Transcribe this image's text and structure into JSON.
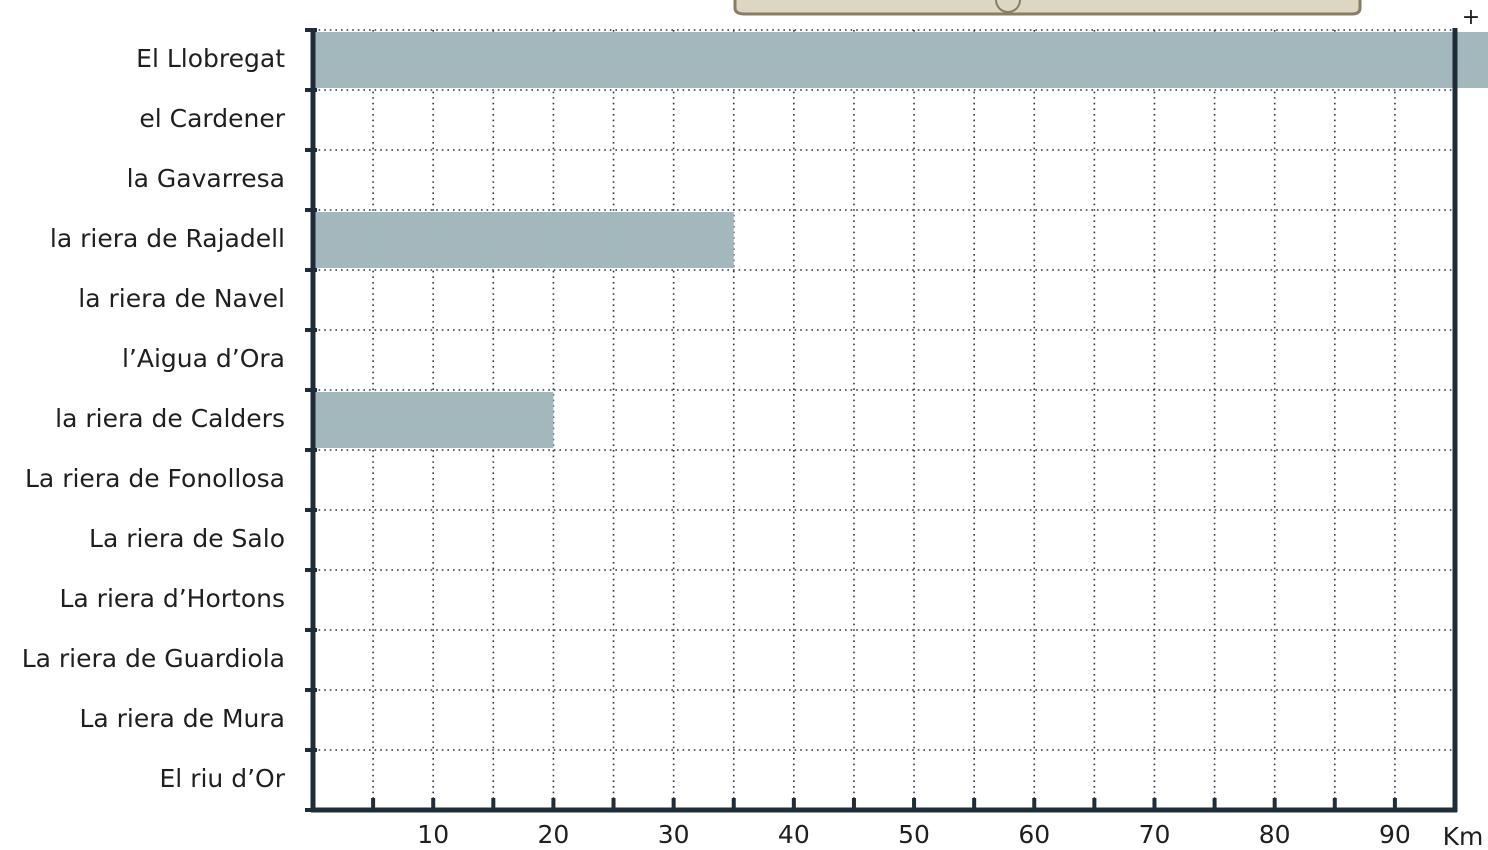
{
  "zoom_button": "+",
  "chart_data": {
    "type": "bar",
    "orientation": "horizontal",
    "categories": [
      "El Llobregat",
      "el Cardener",
      "la Gavarresa",
      "la riera de Rajadell",
      "la riera de Navel",
      "l’Aigua d’Ora",
      "la riera de Calders",
      "La riera de Fonollosa",
      "La riera de Salo",
      "La riera d’Hortons",
      "La riera de Guardiola",
      "La riera de Mura",
      "El riu d’Or"
    ],
    "values": [
      98,
      null,
      null,
      35,
      null,
      null,
      20,
      null,
      null,
      null,
      null,
      null,
      null
    ],
    "color": "#a3b8bd",
    "xlim": [
      0,
      95
    ],
    "xticks": [
      10,
      20,
      30,
      40,
      50,
      60,
      70,
      80,
      90
    ],
    "x_minor_ticks": [
      5,
      15,
      25,
      35,
      45,
      55,
      65,
      75,
      85
    ],
    "x_label": "Km",
    "grid": true
  }
}
